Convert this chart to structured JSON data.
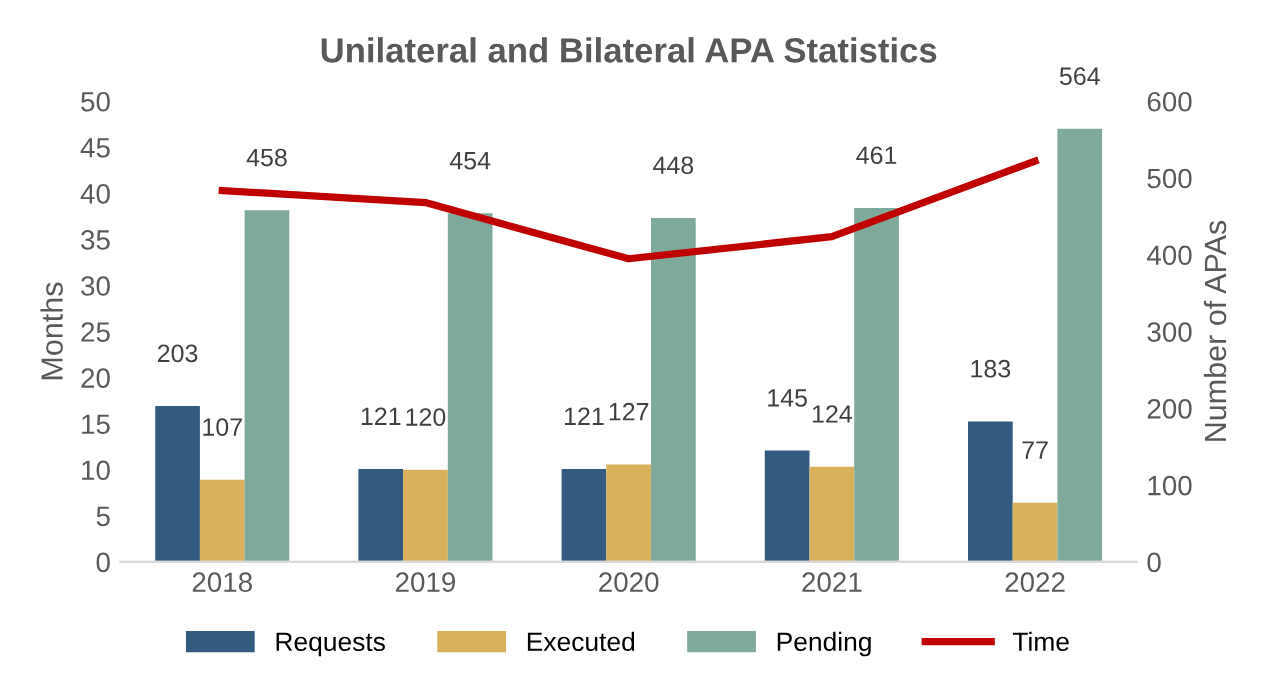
{
  "chart_data": {
    "type": "bar",
    "title": "Unilateral and Bilateral APA Statistics",
    "ylabel": "Months",
    "y2label": "Number of APAs",
    "categories": [
      "2018",
      "2019",
      "2020",
      "2021",
      "2022"
    ],
    "series": [
      {
        "name": "Requests",
        "axis": "y2",
        "color": "#335b7f",
        "values": [
          203,
          121,
          121,
          145,
          183
        ],
        "value_labels": [
          "203",
          "121",
          "121",
          "145",
          "183"
        ]
      },
      {
        "name": "Executed",
        "axis": "y2",
        "color": "#d9b15a",
        "values": [
          107,
          120,
          127,
          124,
          77
        ],
        "value_labels": [
          "107",
          "120",
          "127",
          "124",
          "77"
        ]
      },
      {
        "name": "Pending",
        "axis": "y2",
        "color": "#7fa99b",
        "values": [
          458,
          454,
          448,
          461,
          564
        ],
        "value_labels": [
          "458",
          "454",
          "448",
          "461",
          "564"
        ]
      },
      {
        "name": "Time",
        "type": "line",
        "axis": "y",
        "color": "#c00000",
        "values": [
          40.3,
          39.0,
          32.9,
          35.3,
          43.5
        ]
      }
    ],
    "ylim": [
      0,
      50
    ],
    "yticks": [
      0,
      5,
      10,
      15,
      20,
      25,
      30,
      35,
      40,
      45,
      50
    ],
    "y2lim": [
      0,
      600
    ],
    "y2ticks": [
      0,
      100,
      200,
      300,
      400,
      500,
      600
    ],
    "grid": false,
    "legend": "bottom",
    "marker": "none",
    "line_style": "solid"
  }
}
